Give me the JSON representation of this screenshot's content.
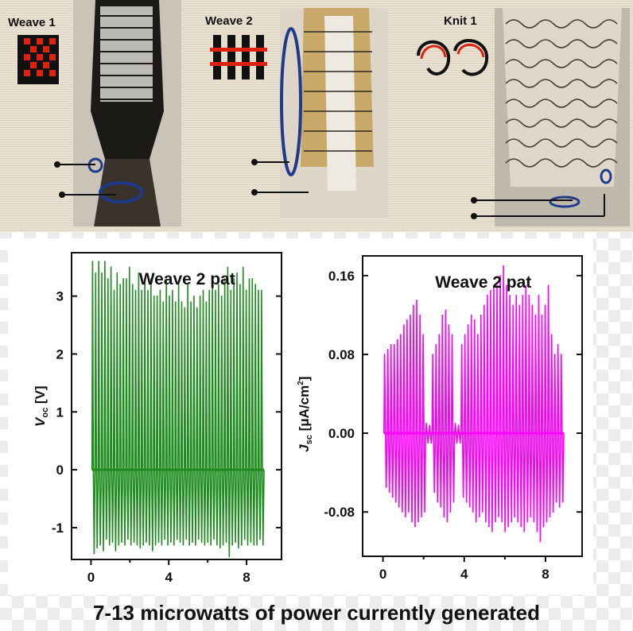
{
  "photos": {
    "panels": [
      {
        "label": "Weave 1"
      },
      {
        "label": "Weave 2"
      },
      {
        "label": "Knit 1"
      }
    ]
  },
  "caption": "7-13 microwatts of power currently generated",
  "chart_data": [
    {
      "type": "line",
      "title": "Weave 2 pat",
      "ylabel": "V_oc [V]",
      "ylabel_main": "V",
      "ylabel_sub": "oc",
      "ylabel_unit": " [V]",
      "xlim": [
        -1,
        9.8
      ],
      "ylim": [
        -1.55,
        3.75
      ],
      "xticks": [
        0,
        4,
        8
      ],
      "yticks": [
        -1,
        0,
        1,
        2,
        3
      ],
      "ytick_labels": [
        "-1",
        "0",
        "1",
        "2",
        "3"
      ],
      "color": "#1f8c1f",
      "series": [
        {
          "x_start": 0.05,
          "x_end": 8.9,
          "pulses": 56,
          "peak_values": [
            3.6,
            3.4,
            3.6,
            3.4,
            3.6,
            3.3,
            3.5,
            3.1,
            3.4,
            3.2,
            3.3,
            3.3,
            3.5,
            3.2,
            3.1,
            3.4,
            3.1,
            3.3,
            3.1,
            3.3,
            3.0,
            3.0,
            3.1,
            2.9,
            3.3,
            3.0,
            3.1,
            2.9,
            3.2,
            2.9,
            2.8,
            3.2,
            2.9,
            3.0,
            2.8,
            3.0,
            3.1,
            2.9,
            3.1,
            3.3,
            3.1,
            3.2,
            3.0,
            3.3,
            3.5,
            3.1,
            3.3,
            3.4,
            3.2,
            3.5,
            3.1,
            3.3,
            3.3,
            3.2,
            3.1,
            3.1
          ],
          "trough_values": [
            -1.45,
            -1.35,
            -1.3,
            -1.4,
            -1.2,
            -1.3,
            -1.25,
            -1.4,
            -1.3,
            -1.25,
            -1.3,
            -1.2,
            -1.3,
            -1.25,
            -1.3,
            -1.35,
            -1.3,
            -1.25,
            -1.3,
            -1.4,
            -1.3,
            -1.25,
            -1.3,
            -1.2,
            -1.3,
            -1.25,
            -1.3,
            -1.2,
            -1.25,
            -1.3,
            -1.2,
            -1.3,
            -1.25,
            -1.3,
            -1.2,
            -1.25,
            -1.3,
            -1.25,
            -1.3,
            -1.2,
            -1.3,
            -1.35,
            -1.3,
            -1.25,
            -1.5,
            -1.3,
            -1.25,
            -1.35,
            -1.3,
            -1.2,
            -1.3,
            -1.25,
            -1.3,
            -1.3,
            -1.2,
            -1.3
          ]
        }
      ]
    },
    {
      "type": "line",
      "title": "Weave 2 pat",
      "ylabel": "J_sc [μA/cm²]",
      "ylabel_main": "J",
      "ylabel_sub": "sc",
      "ylabel_unit": " [μA/cm",
      "ylabel_sup": "2",
      "ylabel_end": "]",
      "xlim": [
        -1,
        9.8
      ],
      "ylim": [
        -0.125,
        0.18
      ],
      "xticks": [
        0,
        4,
        8
      ],
      "yticks": [
        -0.08,
        0,
        0.08,
        0.16
      ],
      "ytick_labels": [
        "-0.08",
        "0.00",
        "0.08",
        "0.16"
      ],
      "color": "#ff00ff",
      "series": [
        {
          "x_start": 0.05,
          "x_end": 8.9,
          "pulses": 56,
          "peak_values": [
            0.08,
            0.085,
            0.09,
            0.09,
            0.095,
            0.1,
            0.11,
            0.115,
            0.12,
            0.13,
            0.135,
            0.12,
            0.1,
            0.01,
            0.008,
            0.08,
            0.09,
            0.1,
            0.12,
            0.125,
            0.11,
            0.1,
            0.01,
            0.008,
            0.09,
            0.1,
            0.11,
            0.12,
            0.115,
            0.1,
            0.12,
            0.13,
            0.14,
            0.145,
            0.15,
            0.15,
            0.16,
            0.17,
            0.15,
            0.14,
            0.13,
            0.14,
            0.13,
            0.14,
            0.15,
            0.14,
            0.13,
            0.12,
            0.14,
            0.12,
            0.13,
            0.15,
            0.1,
            0.08,
            0.09,
            0.08
          ],
          "trough_values": [
            -0.055,
            -0.06,
            -0.065,
            -0.07,
            -0.075,
            -0.08,
            -0.085,
            -0.08,
            -0.09,
            -0.095,
            -0.09,
            -0.085,
            -0.08,
            -0.01,
            -0.01,
            -0.06,
            -0.07,
            -0.075,
            -0.085,
            -0.09,
            -0.08,
            -0.07,
            -0.01,
            -0.01,
            -0.065,
            -0.07,
            -0.075,
            -0.08,
            -0.09,
            -0.085,
            -0.08,
            -0.09,
            -0.095,
            -0.1,
            -0.09,
            -0.085,
            -0.09,
            -0.1,
            -0.095,
            -0.09,
            -0.085,
            -0.09,
            -0.095,
            -0.1,
            -0.09,
            -0.085,
            -0.09,
            -0.1,
            -0.11,
            -0.095,
            -0.09,
            -0.085,
            -0.08,
            -0.07,
            -0.075,
            -0.07
          ]
        }
      ]
    }
  ]
}
